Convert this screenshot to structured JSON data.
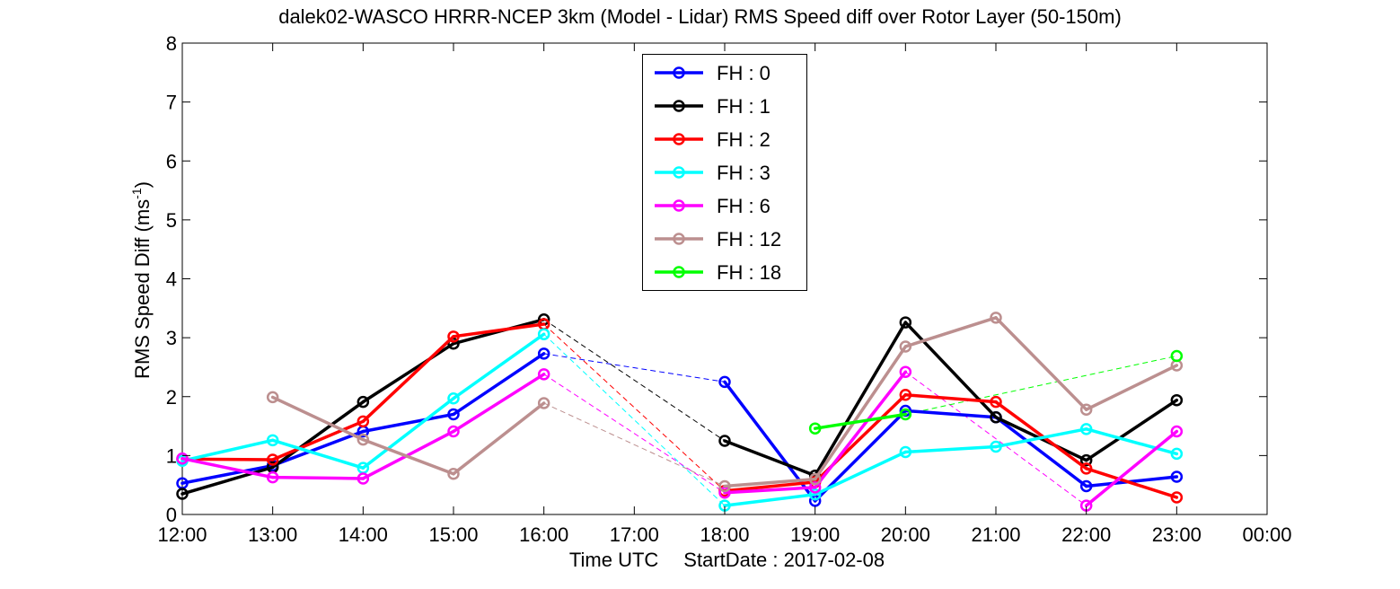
{
  "chart_data": {
    "type": "line",
    "title": "dalek02-WASCO HRRR-NCEP 3km (Model - Lidar) RMS Speed diff over Rotor Layer (50-150m)",
    "xlabel": "Time UTC",
    "xlabel_extra": "StartDate : 2017-02-08",
    "ylabel": "RMS Speed Diff (ms",
    "ylabel_sup": "-1",
    "ylabel_close": ")",
    "xlim": [
      12,
      24
    ],
    "ylim": [
      0,
      8
    ],
    "xticks": [
      {
        "value": 12,
        "label": "12:00"
      },
      {
        "value": 13,
        "label": "13:00"
      },
      {
        "value": 14,
        "label": "14:00"
      },
      {
        "value": 15,
        "label": "15:00"
      },
      {
        "value": 16,
        "label": "16:00"
      },
      {
        "value": 17,
        "label": "17:00"
      },
      {
        "value": 18,
        "label": "18:00"
      },
      {
        "value": 19,
        "label": "19:00"
      },
      {
        "value": 20,
        "label": "20:00"
      },
      {
        "value": 21,
        "label": "21:00"
      },
      {
        "value": 22,
        "label": "22:00"
      },
      {
        "value": 23,
        "label": "23:00"
      },
      {
        "value": 24,
        "label": "00:00"
      }
    ],
    "yticks": [
      0,
      1,
      2,
      3,
      4,
      5,
      6,
      7,
      8
    ],
    "grid": false,
    "legend_position": "top-center",
    "series": [
      {
        "name": "FH : 0",
        "color": "#0000ff",
        "points": [
          [
            12,
            0.53
          ],
          [
            13,
            0.83
          ],
          [
            14,
            1.41
          ],
          [
            15,
            1.7
          ],
          [
            16,
            2.73
          ],
          [
            18,
            2.25
          ],
          [
            19,
            0.23
          ],
          [
            20,
            1.76
          ],
          [
            21,
            1.65
          ],
          [
            22,
            0.48
          ],
          [
            23,
            0.64
          ]
        ]
      },
      {
        "name": "FH : 1",
        "color": "#000000",
        "points": [
          [
            12,
            0.35
          ],
          [
            13,
            0.8
          ],
          [
            14,
            1.91
          ],
          [
            15,
            2.9
          ],
          [
            16,
            3.31
          ],
          [
            18,
            1.25
          ],
          [
            19,
            0.66
          ],
          [
            20,
            3.26
          ],
          [
            21,
            1.65
          ],
          [
            22,
            0.92
          ],
          [
            23,
            1.94
          ]
        ]
      },
      {
        "name": "FH : 2",
        "color": "#ff0000",
        "points": [
          [
            12,
            0.94
          ],
          [
            13,
            0.93
          ],
          [
            14,
            1.58
          ],
          [
            15,
            3.02
          ],
          [
            16,
            3.23
          ],
          [
            18,
            0.4
          ],
          [
            19,
            0.55
          ],
          [
            20,
            2.03
          ],
          [
            21,
            1.91
          ],
          [
            22,
            0.78
          ],
          [
            23,
            0.29
          ]
        ]
      },
      {
        "name": "FH : 3",
        "color": "#00ffff",
        "points": [
          [
            12,
            0.91
          ],
          [
            13,
            1.26
          ],
          [
            14,
            0.79
          ],
          [
            15,
            1.97
          ],
          [
            16,
            3.06
          ],
          [
            18,
            0.15
          ],
          [
            19,
            0.34
          ],
          [
            20,
            1.06
          ],
          [
            21,
            1.15
          ],
          [
            22,
            1.45
          ],
          [
            23,
            1.03
          ]
        ]
      },
      {
        "name": "FH : 6",
        "color": "#ff00ff",
        "points": [
          [
            12,
            0.95
          ],
          [
            13,
            0.63
          ],
          [
            14,
            0.61
          ],
          [
            15,
            1.41
          ],
          [
            16,
            2.38
          ],
          [
            18,
            0.37
          ],
          [
            19,
            0.46
          ],
          [
            20,
            2.42
          ],
          [
            22,
            0.15
          ],
          [
            23,
            1.41
          ]
        ]
      },
      {
        "name": "FH : 12",
        "color": "#bc8f8f",
        "points": [
          [
            13,
            1.99
          ],
          [
            14,
            1.27
          ],
          [
            15,
            0.69
          ],
          [
            16,
            1.89
          ],
          [
            18,
            0.48
          ],
          [
            19,
            0.6
          ],
          [
            20,
            2.85
          ],
          [
            21,
            3.34
          ],
          [
            22,
            1.78
          ],
          [
            23,
            2.53
          ]
        ]
      },
      {
        "name": "FH : 18",
        "color": "#00ff00",
        "points": [
          [
            19,
            1.46
          ],
          [
            20,
            1.7
          ],
          [
            23,
            2.69
          ]
        ]
      }
    ]
  }
}
